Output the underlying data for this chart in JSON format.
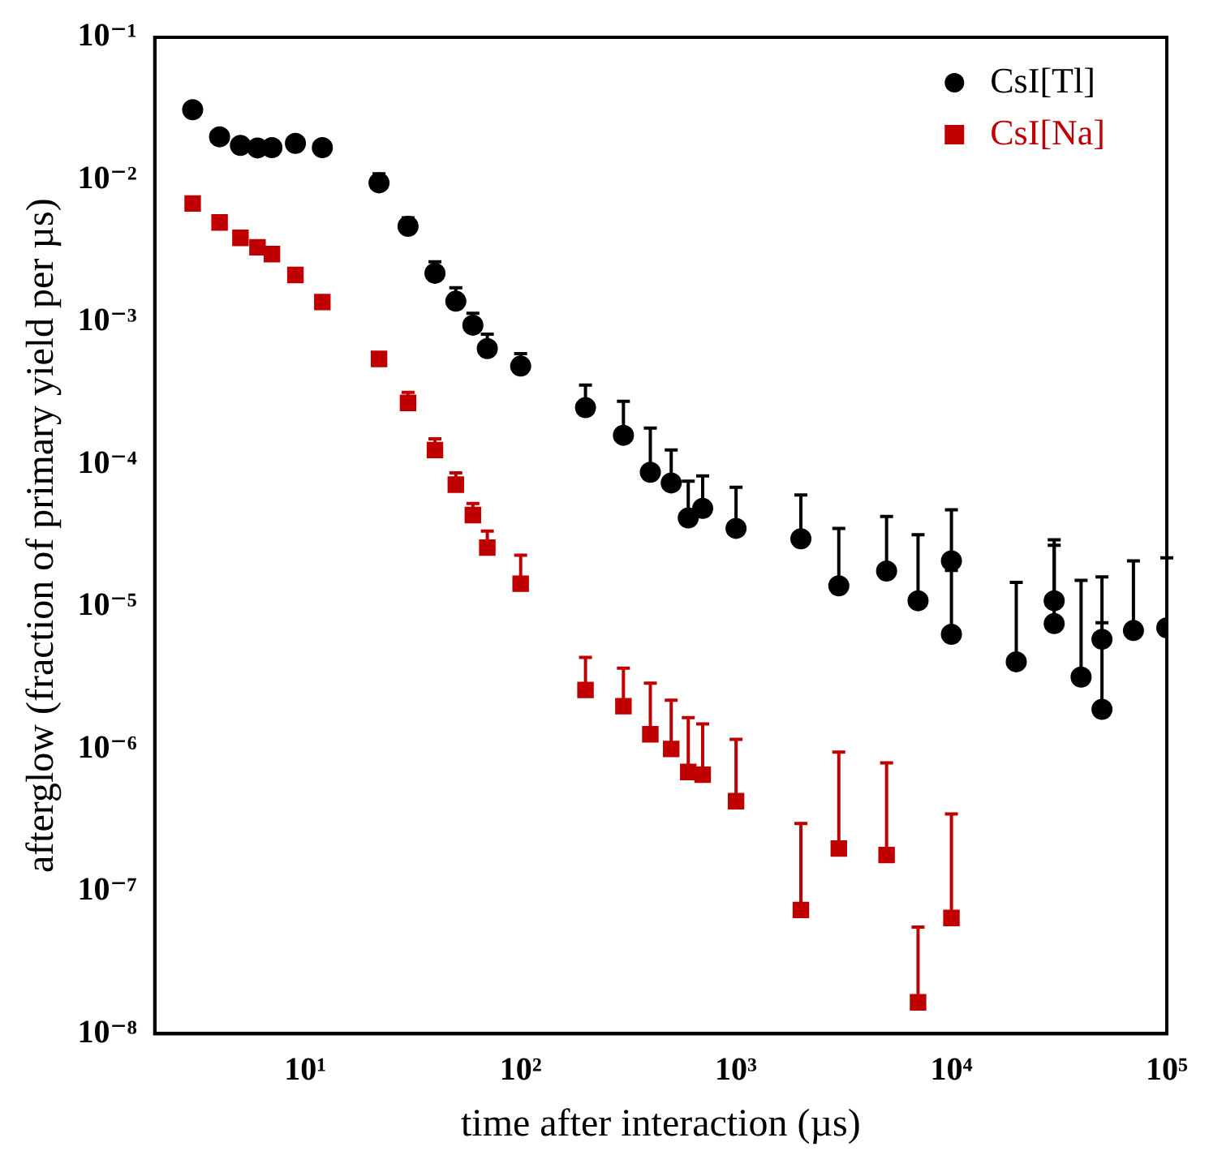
{
  "chart_data": {
    "type": "scatter",
    "xlabel": "time after interaction (µs)",
    "ylabel": "afterglow (fraction of primary yield per µs)",
    "log": "xy",
    "xlim": [
      2,
      100000
    ],
    "ylim": [
      1e-08,
      0.1
    ],
    "xticks": [
      {
        "value": 10,
        "label": "10¹"
      },
      {
        "value": 100,
        "label": "10²"
      },
      {
        "value": 1000,
        "label": "10³"
      },
      {
        "value": 10000,
        "label": "10⁴"
      },
      {
        "value": 100000,
        "label": "10⁵"
      }
    ],
    "yticks": [
      {
        "value": 1e-08,
        "label": "10⁻⁸"
      },
      {
        "value": 1e-07,
        "label": "10⁻⁷"
      },
      {
        "value": 1e-06,
        "label": "10⁻⁶"
      },
      {
        "value": 1e-05,
        "label": "10⁻⁵"
      },
      {
        "value": 0.0001,
        "label": "10⁻⁴"
      },
      {
        "value": 0.001,
        "label": "10⁻³"
      },
      {
        "value": 0.01,
        "label": "10⁻²"
      },
      {
        "value": 0.1,
        "label": "10⁻¹"
      }
    ],
    "legend": "top right",
    "grid": false,
    "series": [
      {
        "name": "CsI[Tl]",
        "color": "#000000",
        "marker": "circle",
        "x": [
          3,
          4,
          5,
          6,
          7,
          9,
          12,
          22,
          30,
          40,
          50,
          60,
          70,
          100,
          200,
          300,
          400,
          500,
          600,
          700,
          1000,
          2000,
          3000,
          5000,
          7000,
          10000,
          10000,
          20000,
          30000,
          30000,
          40000,
          50000,
          50000,
          70000,
          100000
        ],
        "values": [
          0.031,
          0.02,
          0.0174,
          0.0167,
          0.0168,
          0.018,
          0.0168,
          0.0095,
          0.0047,
          0.0022,
          0.0014,
          0.00095,
          0.00065,
          0.00049,
          0.00025,
          0.00016,
          8.8e-05,
          7.4e-05,
          4.2e-05,
          4.9e-05,
          3.55e-05,
          3e-05,
          1.4e-05,
          1.78e-05,
          1.1e-05,
          2.1e-05,
          6.4e-06,
          4.1e-06,
          1.1e-05,
          7.6e-06,
          3.2e-06,
          5.9e-06,
          1.9e-06,
          6.8e-06,
          7.1e-06
        ],
        "errors": [
          null,
          null,
          null,
          null,
          [
            0.0168,
            0.0185
          ],
          null,
          null,
          [
            0.0095,
            0.011
          ],
          [
            0.0047,
            0.0054
          ],
          [
            0.0022,
            0.00265
          ],
          [
            0.0014,
            0.00174
          ],
          [
            0.00095,
            0.00115
          ],
          [
            0.00065,
            0.00082
          ],
          [
            0.00049,
            0.0006
          ],
          [
            0.00025,
            0.00036
          ],
          [
            0.00016,
            0.000277
          ],
          [
            8.8e-05,
            0.00018
          ],
          [
            7.4e-05,
            0.000126
          ],
          [
            4.2e-05,
            7.6e-05
          ],
          [
            4.9e-05,
            8.3e-05
          ],
          [
            3.55e-05,
            6.9e-05
          ],
          [
            3e-05,
            6.1e-05
          ],
          [
            1.4e-05,
            3.55e-05
          ],
          [
            1.78e-05,
            4.3e-05
          ],
          [
            1.1e-05,
            3.2e-05
          ],
          [
            2.1e-05,
            4.8e-05
          ],
          [
            6.4e-06,
            1.8e-05
          ],
          [
            4.1e-06,
            1.48e-05
          ],
          [
            1.1e-05,
            2.95e-05
          ],
          [
            7.6e-06,
            2.7e-05
          ],
          [
            3.2e-06,
            1.53e-05
          ],
          [
            5.9e-06,
            1.62e-05
          ],
          [
            1.9e-06,
            7.7e-06
          ],
          [
            6.8e-06,
            2.1e-05
          ],
          [
            7.1e-06,
            2.2e-05
          ]
        ]
      },
      {
        "name": "CsI[Na]",
        "color": "#c00000",
        "marker": "square",
        "x": [
          3,
          4,
          5,
          6,
          7,
          9,
          12,
          22,
          30,
          40,
          50,
          60,
          70,
          100,
          200,
          300,
          400,
          500,
          600,
          700,
          1000,
          2000,
          3000,
          5000,
          7000,
          10000
        ],
        "values": [
          0.0068,
          0.005,
          0.0039,
          0.00335,
          0.003,
          0.00214,
          0.00138,
          0.00055,
          0.00027,
          0.000126,
          7.2e-05,
          4.4e-05,
          2.6e-05,
          1.45e-05,
          2.6e-06,
          2e-06,
          1.27e-06,
          1e-06,
          6.9e-07,
          6.6e-07,
          4.3e-07,
          7.4e-08,
          2e-07,
          1.8e-07,
          1.66e-08,
          6.5e-08
        ],
        "errors": [
          null,
          null,
          null,
          null,
          null,
          null,
          null,
          null,
          [
            0.00027,
            0.00032
          ],
          [
            0.000126,
            0.000151
          ],
          [
            7.2e-05,
            8.7e-05
          ],
          [
            4.4e-05,
            5.3e-05
          ],
          [
            2.6e-05,
            3.4e-05
          ],
          [
            1.45e-05,
            2.3e-05
          ],
          [
            2.6e-06,
            4.4e-06
          ],
          [
            2e-06,
            3.7e-06
          ],
          [
            1.27e-06,
            2.9e-06
          ],
          [
            1e-06,
            2.2e-06
          ],
          [
            6.9e-07,
            1.66e-06
          ],
          [
            6.6e-07,
            1.5e-06
          ],
          [
            4.3e-07,
            1.17e-06
          ],
          [
            7.4e-08,
            3e-07
          ],
          [
            2e-07,
            9.5e-07
          ],
          [
            1.8e-07,
            8e-07
          ],
          [
            1.66e-08,
            5.6e-08
          ],
          [
            6.5e-08,
            3.5e-07
          ]
        ]
      }
    ]
  }
}
